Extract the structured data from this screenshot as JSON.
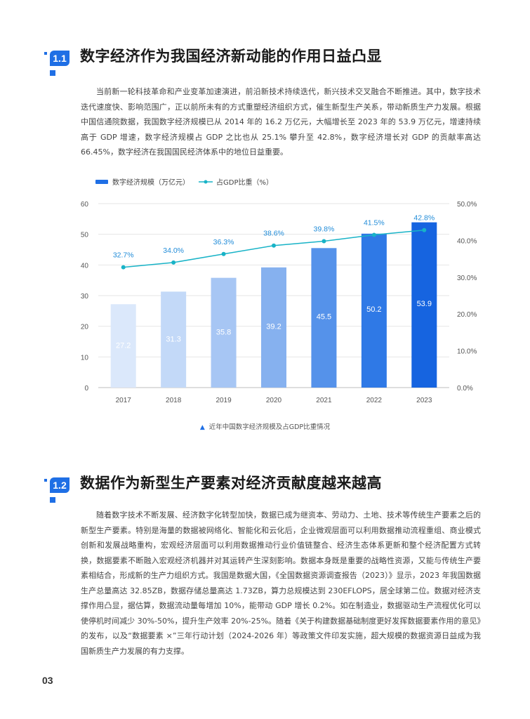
{
  "section1": {
    "number": "1.1",
    "title": "数字经济作为我国经济新动能的作用日益凸显",
    "paragraph": "当前新一轮科技革命和产业变革加速演进，前沿新技术持续迭代，新兴技术交叉融合不断推进。其中，数字技术迭代速度快、影响范围广，正以前所未有的方式重塑经济组织方式，催生新型生产关系，带动新质生产力发展。根据中国信通院数据，我国数字经济规模已从 2014 年的 16.2 万亿元，大幅增长至 2023 年的 53.9 万亿元，增速持续高于 GDP 增速，数字经济规模占 GDP 之比也从 25.1% 攀升至 42.8%，数字经济增长对 GDP 的贡献率高达 66.45%，数字经济在我国国民经济体系中的地位日益重要。"
  },
  "chart_data": {
    "type": "bar",
    "categories": [
      "2017",
      "2018",
      "2019",
      "2020",
      "2021",
      "2022",
      "2023"
    ],
    "series": [
      {
        "name": "数字经济规模（万亿元）",
        "type": "bar",
        "values": [
          27.2,
          31.3,
          35.8,
          39.2,
          45.5,
          50.2,
          53.9
        ],
        "labels": [
          "27.2",
          "31.3",
          "35.8",
          "39.2",
          "45.5",
          "50.2",
          "53.9"
        ]
      },
      {
        "name": "占GDP比重（%）",
        "type": "line",
        "axis": "right",
        "values": [
          32.7,
          34.0,
          36.3,
          38.6,
          39.8,
          41.5,
          42.8
        ],
        "labels": [
          "32.7%",
          "34.0%",
          "36.3%",
          "38.6%",
          "39.8%",
          "41.5%",
          "42.8%"
        ]
      }
    ],
    "ylim": [
      0,
      60
    ],
    "y_ticks": [
      "0",
      "10",
      "20",
      "30",
      "40",
      "50",
      "60"
    ],
    "y2lim": [
      0,
      50
    ],
    "y2_ticks": [
      "0.0%",
      "10.0%",
      "20.0%",
      "30.0%",
      "40.0%",
      "50.0%"
    ],
    "bar_colors": [
      "#dbe8fb",
      "#c3d9f8",
      "#a7c6f4",
      "#86b1ef",
      "#5592ea",
      "#2f79e6",
      "#1664e0"
    ],
    "bar_label_colors": [
      "#ffffff",
      "#ffffff",
      "#ffffff",
      "#ffffff",
      "#ffffff",
      "#ffffff",
      "#ffffff"
    ],
    "line_color": "#18b3c7",
    "line_label_color": "#1f8bd8",
    "legend_position": "top-left",
    "grid": true,
    "caption": "近年中国数字经济规模及占GDP比重情况"
  },
  "section2": {
    "number": "1.2",
    "title": "数据作为新型生产要素对经济贡献度越来越高",
    "paragraph": "随着数字技术不断发展、经济数字化转型加快，数据已成为继资本、劳动力、土地、技术等传统生产要素之后的新型生产要素。特别是海量的数据被网络化、智能化和云化后，企业微观层面可以利用数据推动流程重组、商业模式创新和发展战略重构，宏观经济层面可以利用数据推动行业价值链整合、经济生态体系更新和整个经济配置方式转换，数据要素不断融入宏观经济机器并对其运转产生深刻影响。数据本身既是重要的战略性资源，又能与传统生产要素相结合，形成新的生产力组织方式。我国是数据大国，《全国数据资源调查报告（2023）》显示，2023 年我国数据生产总量高达 32.85ZB，数据存储总量高达 1.73ZB，算力总规模达到 230EFLOPS，居全球第二位。数据对经济支撑作用凸显，据估算，数据流动量每增加 10%，能带动 GDP 增长 0.2%。如在制造业，数据驱动生产流程优化可以使停机时间减少 30%-50%，提升生产效率 20%-25%。随着《关于构建数据基础制度更好发挥数据要素作用的意见》的发布，以及“数据要素 ×”三年行动计划（2024-2026 年）等政策文件印发实施，超大规模的数据资源日益成为我国新质生产力发展的有力支撑。"
  },
  "footer": {
    "page_number": "03"
  },
  "colors": {
    "accent": "#1f6fe5"
  }
}
